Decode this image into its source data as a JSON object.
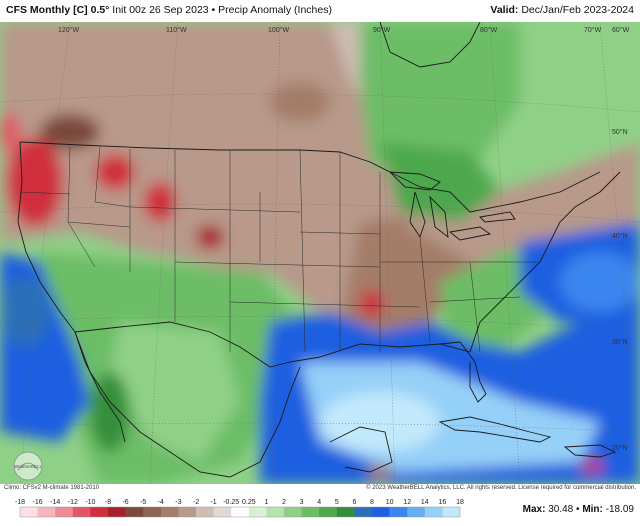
{
  "header": {
    "model": "CFS Monthly [C] 0.5°",
    "init": "Init 00z 26 Sep 2023",
    "separator": "•",
    "variable": "Precip Anomaly (Inches)",
    "valid_label": "Valid:",
    "valid_period": "Dec/Jan/Feb 2023-2024"
  },
  "map": {
    "longitude_labels": [
      "120°W",
      "110°W",
      "100°W",
      "90°W",
      "80°W",
      "70°W",
      "60°W"
    ],
    "latitude_labels": [
      "50°N",
      "40°N",
      "30°N",
      "20°N"
    ],
    "logo_text": "WeatherBELL"
  },
  "footer": {
    "climo": "Climo: CFSv2 M-climate 1981-2010",
    "copyright": "© 2023 WeatherBELL Analytics, LLC. All rights reserved. License required for commercial distribution."
  },
  "legend": {
    "ticks": [
      "-18",
      "-16",
      "-14",
      "-12",
      "-10",
      "-8",
      "-6",
      "-5",
      "-4",
      "-3",
      "-2",
      "-1",
      "-0.25",
      "0.25",
      "1",
      "2",
      "3",
      "4",
      "5",
      "6",
      "8",
      "10",
      "12",
      "14",
      "16",
      "18"
    ],
    "colors": [
      "#fde0e4",
      "#f7b6be",
      "#ee8a96",
      "#e25564",
      "#d02f3e",
      "#a8202c",
      "#7a4a3a",
      "#8c6450",
      "#a47d68",
      "#b8998a",
      "#cfbcb2",
      "#e3d8d2",
      "#ffffff",
      "#d9f0d5",
      "#b5e2ae",
      "#8fd087",
      "#6cbd66",
      "#4ea84e",
      "#348f3a",
      "#2a6fb8",
      "#1f5fe0",
      "#3b86ee",
      "#67aef4",
      "#95d0f8",
      "#c2e8fb"
    ]
  },
  "stats": {
    "max_label": "Max:",
    "max_value": "30.48",
    "separator": "•",
    "min_label": "Min:",
    "min_value": "-18.09"
  },
  "palette": {
    "land_dry": "#b8998a",
    "land_wet": "#6cbd66",
    "ocean_wet": "#1f5fe0",
    "very_wet": "#95d0f8",
    "very_dry": "#d02f3e",
    "borders": "#222222"
  }
}
